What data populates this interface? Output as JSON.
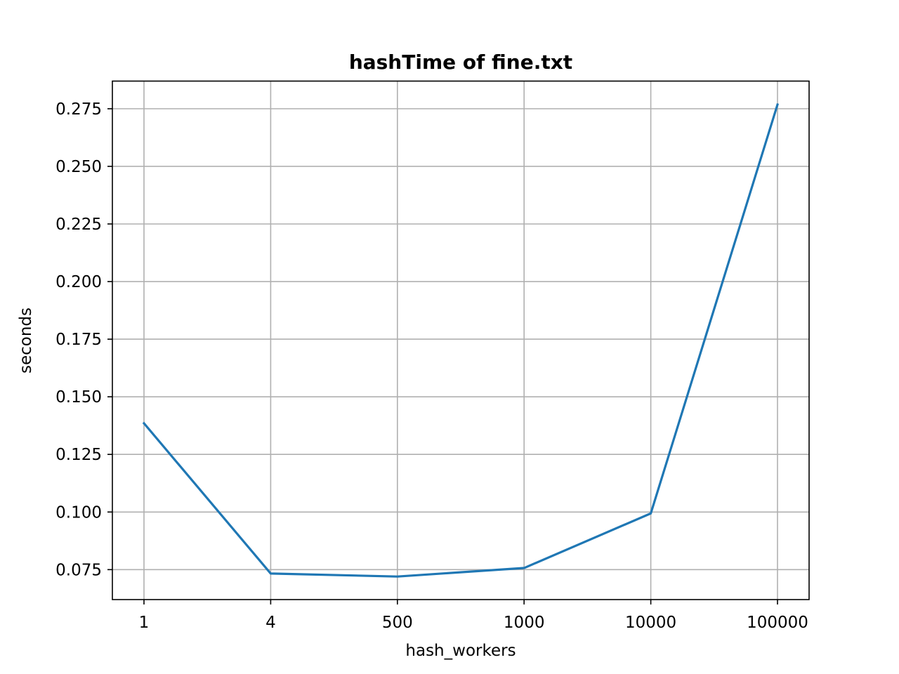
{
  "chart_data": {
    "type": "line",
    "title": "hashTime of fine.txt",
    "xlabel": "hash_workers",
    "ylabel": "seconds",
    "categories": [
      "1",
      "4",
      "500",
      "1000",
      "10000",
      "100000"
    ],
    "series": [
      {
        "color": "#1f77b4",
        "values": [
          0.1385,
          0.0733,
          0.072,
          0.0757,
          0.0994,
          0.2768
        ]
      }
    ],
    "ylim": [
      0.062,
      0.287
    ],
    "yticks": [
      0.075,
      0.1,
      0.125,
      0.15,
      0.175,
      0.2,
      0.225,
      0.25,
      0.275
    ],
    "ytick_labels": [
      "0.075",
      "0.100",
      "0.125",
      "0.150",
      "0.175",
      "0.200",
      "0.225",
      "0.250",
      "0.275"
    ],
    "grid": true,
    "legend": "none"
  }
}
